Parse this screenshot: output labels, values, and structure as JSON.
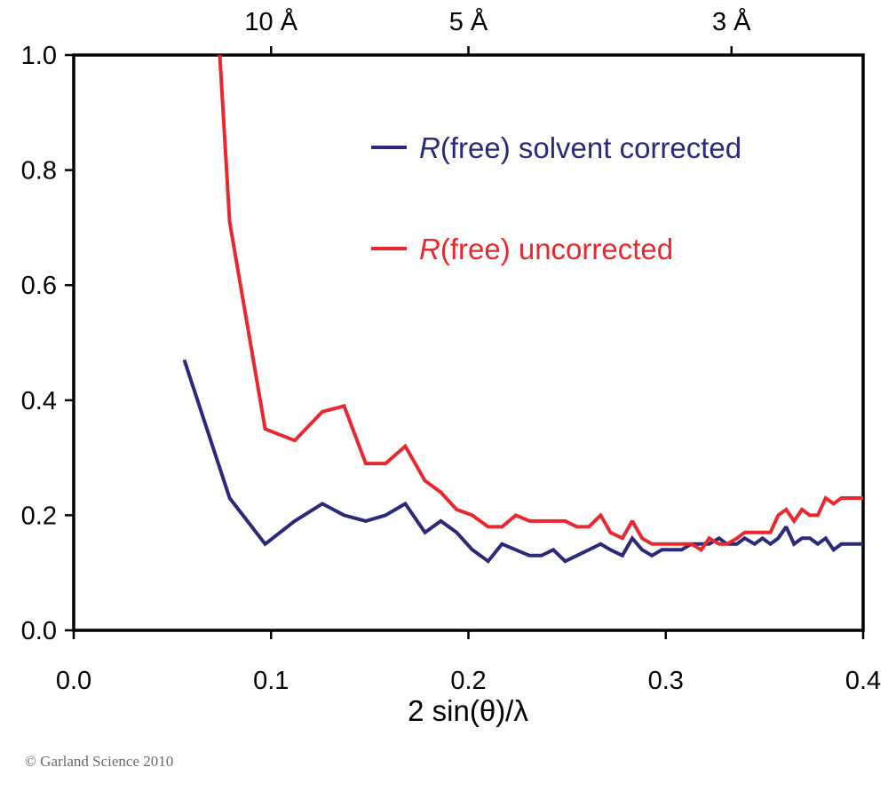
{
  "chart_data": {
    "type": "line",
    "title": "",
    "xlabel": "2 sin(θ)/λ",
    "ylabel": "",
    "xlim": [
      0.0,
      0.4
    ],
    "ylim": [
      0.0,
      1.0
    ],
    "x_ticks": [
      0.0,
      0.1,
      0.2,
      0.3,
      0.4
    ],
    "x_tick_labels": [
      "0.0",
      "0.1",
      "0.2",
      "0.3",
      "0.4"
    ],
    "y_ticks": [
      0.0,
      0.2,
      0.4,
      0.6,
      0.8,
      1.0
    ],
    "y_tick_labels": [
      "0.0",
      "0.2",
      "0.4",
      "0.6",
      "0.8",
      "1.0"
    ],
    "top_axis": {
      "ticks": [
        {
          "x": 0.1,
          "label": "10 Å"
        },
        {
          "x": 0.2,
          "label": "5 Å"
        },
        {
          "x": 0.3333,
          "label": "3 Å"
        }
      ]
    },
    "grid": false,
    "legend_position": "upper-right",
    "series": [
      {
        "name": "R(free) solvent corrected",
        "name_italic": "R",
        "name_rest": "(free) solvent corrected",
        "color": "#2b2a7a",
        "x": [
          0.056,
          0.079,
          0.097,
          0.112,
          0.126,
          0.137,
          0.148,
          0.158,
          0.168,
          0.178,
          0.186,
          0.194,
          0.202,
          0.21,
          0.217,
          0.224,
          0.231,
          0.237,
          0.243,
          0.249,
          0.255,
          0.261,
          0.267,
          0.272,
          0.278,
          0.283,
          0.288,
          0.293,
          0.298,
          0.303,
          0.308,
          0.313,
          0.318,
          0.322,
          0.327,
          0.331,
          0.336,
          0.34,
          0.345,
          0.349,
          0.353,
          0.357,
          0.361,
          0.365,
          0.369,
          0.373,
          0.377,
          0.381,
          0.385,
          0.389,
          0.393,
          0.397,
          0.4
        ],
        "values": [
          0.47,
          0.23,
          0.15,
          0.19,
          0.22,
          0.2,
          0.19,
          0.2,
          0.22,
          0.17,
          0.19,
          0.17,
          0.14,
          0.12,
          0.15,
          0.14,
          0.13,
          0.13,
          0.14,
          0.12,
          0.13,
          0.14,
          0.15,
          0.14,
          0.13,
          0.16,
          0.14,
          0.13,
          0.14,
          0.14,
          0.14,
          0.15,
          0.15,
          0.15,
          0.16,
          0.15,
          0.15,
          0.16,
          0.15,
          0.16,
          0.15,
          0.16,
          0.18,
          0.15,
          0.16,
          0.16,
          0.15,
          0.16,
          0.14,
          0.15,
          0.15,
          0.15,
          0.15
        ]
      },
      {
        "name": "R(free) uncorrected",
        "name_italic": "R",
        "name_rest": "(free) uncorrected",
        "color": "#e8282e",
        "x": [
          0.074,
          0.079,
          0.097,
          0.112,
          0.126,
          0.137,
          0.148,
          0.158,
          0.168,
          0.178,
          0.186,
          0.194,
          0.202,
          0.21,
          0.217,
          0.224,
          0.231,
          0.237,
          0.243,
          0.249,
          0.255,
          0.261,
          0.267,
          0.272,
          0.278,
          0.283,
          0.288,
          0.293,
          0.298,
          0.303,
          0.308,
          0.313,
          0.318,
          0.322,
          0.327,
          0.331,
          0.336,
          0.34,
          0.345,
          0.349,
          0.353,
          0.357,
          0.361,
          0.365,
          0.369,
          0.373,
          0.377,
          0.381,
          0.385,
          0.389,
          0.393,
          0.397,
          0.4
        ],
        "values": [
          1.0,
          0.71,
          0.35,
          0.33,
          0.38,
          0.39,
          0.29,
          0.29,
          0.32,
          0.26,
          0.24,
          0.21,
          0.2,
          0.18,
          0.18,
          0.2,
          0.19,
          0.19,
          0.19,
          0.19,
          0.18,
          0.18,
          0.2,
          0.17,
          0.16,
          0.19,
          0.16,
          0.15,
          0.15,
          0.15,
          0.15,
          0.15,
          0.14,
          0.16,
          0.15,
          0.15,
          0.16,
          0.17,
          0.17,
          0.17,
          0.17,
          0.2,
          0.21,
          0.19,
          0.21,
          0.2,
          0.2,
          0.23,
          0.22,
          0.23,
          0.23,
          0.23,
          0.23
        ]
      }
    ]
  },
  "footer": {
    "copyright": "© Garland Science 2010"
  }
}
